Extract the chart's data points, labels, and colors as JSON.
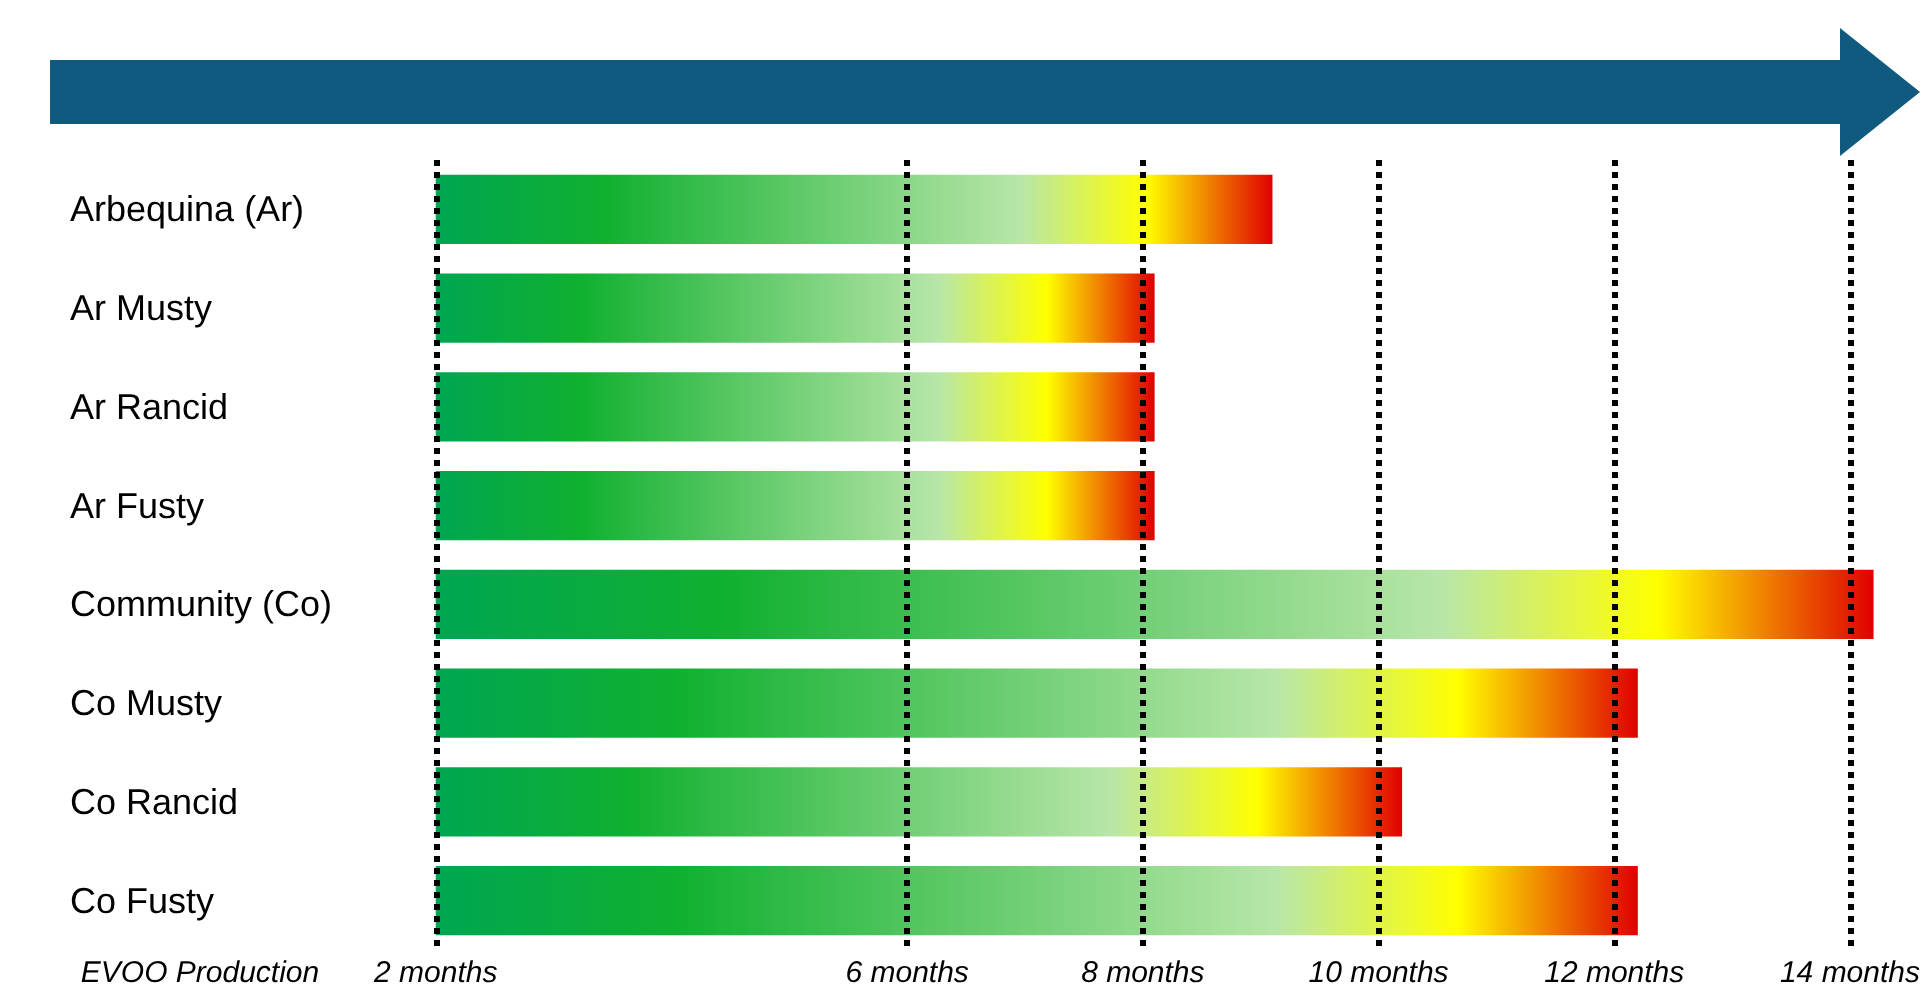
{
  "chart_data": {
    "type": "bar",
    "orientation": "horizontal",
    "categories": [
      "Arbequina (Ar)",
      "Ar Musty",
      "Ar Rancid",
      "Ar Fusty",
      "Community (Co)",
      "Co Musty",
      "Co Rancid",
      "Co Fusty"
    ],
    "base": [
      2,
      2,
      2,
      2,
      2,
      2,
      2,
      2
    ],
    "values": [
      7.1,
      6.1,
      6.1,
      6.1,
      12.2,
      10.2,
      8.2,
      10.2
    ],
    "colors": [
      "#e00000",
      "#e00000",
      "#e00000",
      "#e00000",
      "#e00000",
      "#e00000",
      "#e00000",
      "#e00000"
    ],
    "xticks": [
      {
        "value": 0,
        "label": "EVOO Production"
      },
      {
        "value": 2,
        "label": "2 months"
      },
      {
        "value": 6,
        "label": "6 months"
      },
      {
        "value": 8,
        "label": "8 months"
      },
      {
        "value": 10,
        "label": "10 months"
      },
      {
        "value": 12,
        "label": "12 months"
      },
      {
        "value": 14,
        "label": "14 months"
      }
    ],
    "ref_lines": [
      {
        "axis": "x",
        "value": 2,
        "line_style": "dotted",
        "color": "#000000"
      },
      {
        "axis": "x",
        "value": 6,
        "line_style": "dotted",
        "color": "#000000"
      },
      {
        "axis": "x",
        "value": 8,
        "line_style": "dotted",
        "color": "#000000"
      },
      {
        "axis": "x",
        "value": 10,
        "line_style": "dotted",
        "color": "#000000"
      },
      {
        "axis": "x",
        "value": 12,
        "line_style": "dotted",
        "color": "#000000"
      },
      {
        "axis": "x",
        "value": 14,
        "line_style": "dotted",
        "color": "#000000"
      }
    ],
    "xlim": [
      0,
      14.2
    ],
    "grid": false
  }
}
